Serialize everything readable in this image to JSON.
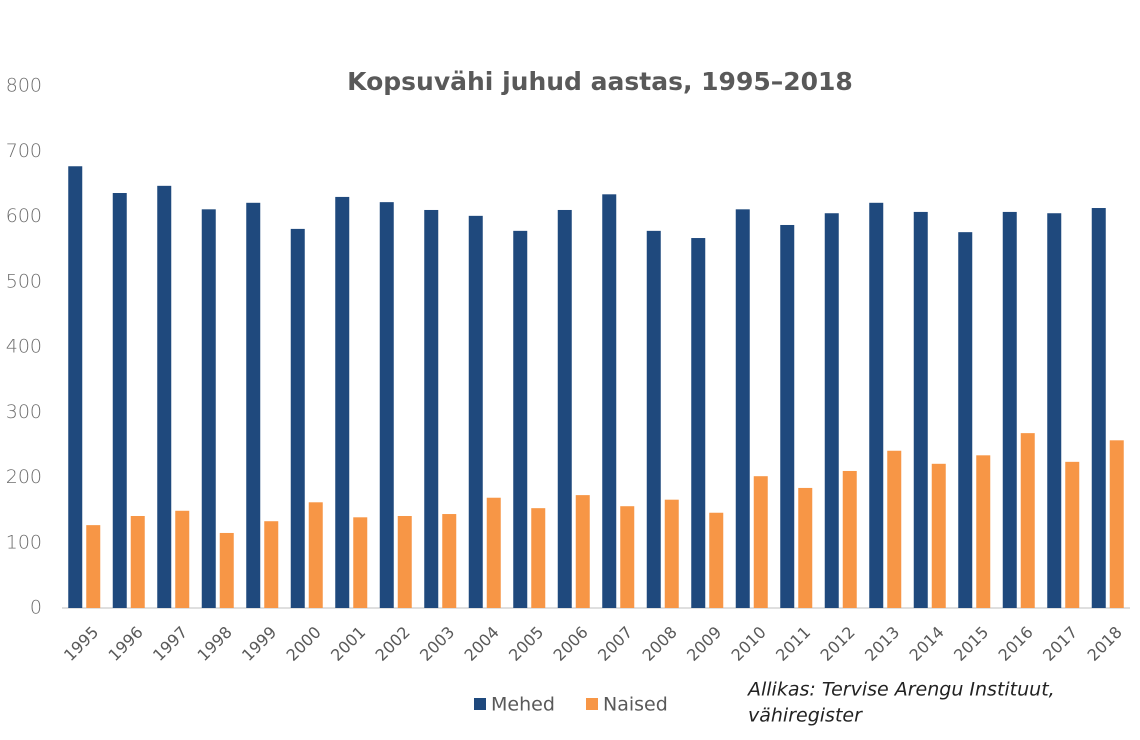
{
  "chart_data": {
    "type": "bar",
    "title": "Kopsuvähi juhud aastas, 1995–2018",
    "source": [
      "Allikas: Tervise Arengu Instituut,",
      "vähiregister"
    ],
    "categories": [
      "1995",
      "1996",
      "1997",
      "1998",
      "1999",
      "2000",
      "2001",
      "2002",
      "2003",
      "2004",
      "2005",
      "2006",
      "2007",
      "2008",
      "2009",
      "2010",
      "2011",
      "2012",
      "2013",
      "2014",
      "2015",
      "2016",
      "2017",
      "2018"
    ],
    "series": [
      {
        "name": "Mehed",
        "color": "#1f497d",
        "values": [
          677,
          636,
          647,
          611,
          621,
          581,
          630,
          622,
          610,
          601,
          578,
          610,
          634,
          578,
          567,
          611,
          587,
          605,
          621,
          607,
          576,
          607,
          605,
          613
        ]
      },
      {
        "name": "Naised",
        "color": "#f79646",
        "values": [
          127,
          141,
          149,
          115,
          133,
          162,
          139,
          141,
          144,
          169,
          153,
          173,
          156,
          166,
          146,
          202,
          184,
          210,
          241,
          221,
          234,
          268,
          224,
          257
        ]
      }
    ],
    "ylim": [
      0,
      800
    ],
    "yticks": [
      0,
      100,
      200,
      300,
      400,
      500,
      600,
      700,
      800
    ],
    "grid": false,
    "legend": "bottom"
  }
}
